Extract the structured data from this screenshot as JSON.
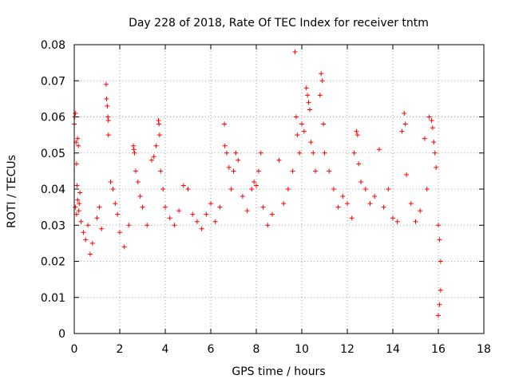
{
  "chart_data": {
    "type": "scatter",
    "title": "Day 228 of 2018, Rate Of TEC Index for receiver tntm",
    "xlabel": "GPS time / hours",
    "ylabel": "ROTI / TECUs",
    "xlim": [
      0,
      18
    ],
    "ylim": [
      0,
      0.08
    ],
    "grid": true,
    "marker": "+",
    "series_color": "#ff0000",
    "x_ticks": [
      "0",
      "2",
      "4",
      "6",
      "8",
      "10",
      "12",
      "14",
      "16",
      "18"
    ],
    "y_ticks": [
      "0",
      "0.01",
      "0.02",
      "0.03",
      "0.04",
      "0.05",
      "0.06",
      "0.07",
      "0.08"
    ],
    "x_tick_values": [
      0,
      2,
      4,
      6,
      8,
      10,
      12,
      14,
      16,
      18
    ],
    "y_tick_values": [
      0,
      0.01,
      0.02,
      0.03,
      0.04,
      0.05,
      0.06,
      0.07,
      0.08
    ],
    "series": [
      {
        "name": "ROTI",
        "points": [
          [
            0.0,
            0.058
          ],
          [
            0.02,
            0.06
          ],
          [
            0.05,
            0.061
          ],
          [
            0.08,
            0.053
          ],
          [
            0.1,
            0.047
          ],
          [
            0.12,
            0.041
          ],
          [
            0.15,
            0.037
          ],
          [
            0.2,
            0.034
          ],
          [
            0.25,
            0.039
          ],
          [
            0.3,
            0.031
          ],
          [
            0.05,
            0.035
          ],
          [
            0.1,
            0.033
          ],
          [
            0.15,
            0.054
          ],
          [
            0.18,
            0.052
          ],
          [
            0.22,
            0.036
          ],
          [
            0.4,
            0.028
          ],
          [
            0.5,
            0.026
          ],
          [
            0.6,
            0.03
          ],
          [
            0.7,
            0.022
          ],
          [
            0.8,
            0.025
          ],
          [
            1.0,
            0.032
          ],
          [
            1.1,
            0.035
          ],
          [
            1.2,
            0.029
          ],
          [
            1.4,
            0.069
          ],
          [
            1.42,
            0.065
          ],
          [
            1.45,
            0.063
          ],
          [
            1.48,
            0.06
          ],
          [
            1.5,
            0.059
          ],
          [
            1.5,
            0.055
          ],
          [
            1.6,
            0.042
          ],
          [
            1.7,
            0.04
          ],
          [
            1.8,
            0.036
          ],
          [
            1.9,
            0.033
          ],
          [
            2.0,
            0.028
          ],
          [
            2.2,
            0.024
          ],
          [
            2.4,
            0.03
          ],
          [
            2.6,
            0.052
          ],
          [
            2.62,
            0.051
          ],
          [
            2.65,
            0.05
          ],
          [
            2.7,
            0.045
          ],
          [
            2.8,
            0.042
          ],
          [
            2.9,
            0.038
          ],
          [
            3.0,
            0.035
          ],
          [
            3.2,
            0.03
          ],
          [
            3.4,
            0.048
          ],
          [
            3.5,
            0.049
          ],
          [
            3.6,
            0.052
          ],
          [
            3.7,
            0.059
          ],
          [
            3.72,
            0.058
          ],
          [
            3.75,
            0.055
          ],
          [
            3.8,
            0.045
          ],
          [
            3.9,
            0.04
          ],
          [
            4.0,
            0.035
          ],
          [
            4.2,
            0.032
          ],
          [
            4.4,
            0.03
          ],
          [
            4.6,
            0.034
          ],
          [
            4.8,
            0.041
          ],
          [
            5.0,
            0.04
          ],
          [
            5.2,
            0.033
          ],
          [
            5.4,
            0.031
          ],
          [
            5.6,
            0.029
          ],
          [
            5.8,
            0.033
          ],
          [
            6.0,
            0.036
          ],
          [
            6.2,
            0.031
          ],
          [
            6.4,
            0.035
          ],
          [
            6.6,
            0.058
          ],
          [
            6.62,
            0.052
          ],
          [
            6.7,
            0.05
          ],
          [
            6.8,
            0.046
          ],
          [
            6.9,
            0.04
          ],
          [
            7.0,
            0.045
          ],
          [
            7.1,
            0.05
          ],
          [
            7.2,
            0.048
          ],
          [
            7.4,
            0.038
          ],
          [
            7.6,
            0.034
          ],
          [
            7.8,
            0.04
          ],
          [
            7.9,
            0.042
          ],
          [
            8.0,
            0.041
          ],
          [
            8.1,
            0.045
          ],
          [
            8.2,
            0.05
          ],
          [
            8.3,
            0.035
          ],
          [
            8.5,
            0.03
          ],
          [
            8.7,
            0.033
          ],
          [
            9.0,
            0.048
          ],
          [
            9.2,
            0.036
          ],
          [
            9.4,
            0.04
          ],
          [
            9.6,
            0.045
          ],
          [
            9.7,
            0.078
          ],
          [
            9.75,
            0.06
          ],
          [
            9.8,
            0.055
          ],
          [
            9.9,
            0.05
          ],
          [
            10.0,
            0.058
          ],
          [
            10.1,
            0.056
          ],
          [
            10.2,
            0.068
          ],
          [
            10.25,
            0.066
          ],
          [
            10.3,
            0.064
          ],
          [
            10.35,
            0.062
          ],
          [
            10.4,
            0.053
          ],
          [
            10.5,
            0.05
          ],
          [
            10.6,
            0.045
          ],
          [
            10.8,
            0.066
          ],
          [
            10.85,
            0.072
          ],
          [
            10.9,
            0.07
          ],
          [
            10.95,
            0.058
          ],
          [
            11.0,
            0.05
          ],
          [
            11.2,
            0.045
          ],
          [
            11.4,
            0.04
          ],
          [
            11.6,
            0.035
          ],
          [
            11.8,
            0.038
          ],
          [
            12.0,
            0.036
          ],
          [
            12.2,
            0.032
          ],
          [
            12.3,
            0.05
          ],
          [
            12.4,
            0.056
          ],
          [
            12.45,
            0.055
          ],
          [
            12.5,
            0.047
          ],
          [
            12.6,
            0.042
          ],
          [
            12.8,
            0.04
          ],
          [
            13.0,
            0.036
          ],
          [
            13.2,
            0.038
          ],
          [
            13.4,
            0.051
          ],
          [
            13.6,
            0.035
          ],
          [
            13.8,
            0.04
          ],
          [
            14.0,
            0.032
          ],
          [
            14.2,
            0.031
          ],
          [
            14.4,
            0.056
          ],
          [
            14.5,
            0.061
          ],
          [
            14.55,
            0.058
          ],
          [
            14.6,
            0.044
          ],
          [
            14.8,
            0.036
          ],
          [
            15.0,
            0.031
          ],
          [
            15.2,
            0.034
          ],
          [
            15.4,
            0.054
          ],
          [
            15.5,
            0.04
          ],
          [
            15.6,
            0.06
          ],
          [
            15.7,
            0.059
          ],
          [
            15.75,
            0.057
          ],
          [
            15.8,
            0.053
          ],
          [
            15.85,
            0.05
          ],
          [
            15.9,
            0.046
          ],
          [
            16.0,
            0.03
          ],
          [
            16.05,
            0.026
          ],
          [
            16.1,
            0.02
          ],
          [
            16.1,
            0.012
          ],
          [
            16.05,
            0.008
          ],
          [
            16.0,
            0.005
          ]
        ]
      }
    ]
  }
}
